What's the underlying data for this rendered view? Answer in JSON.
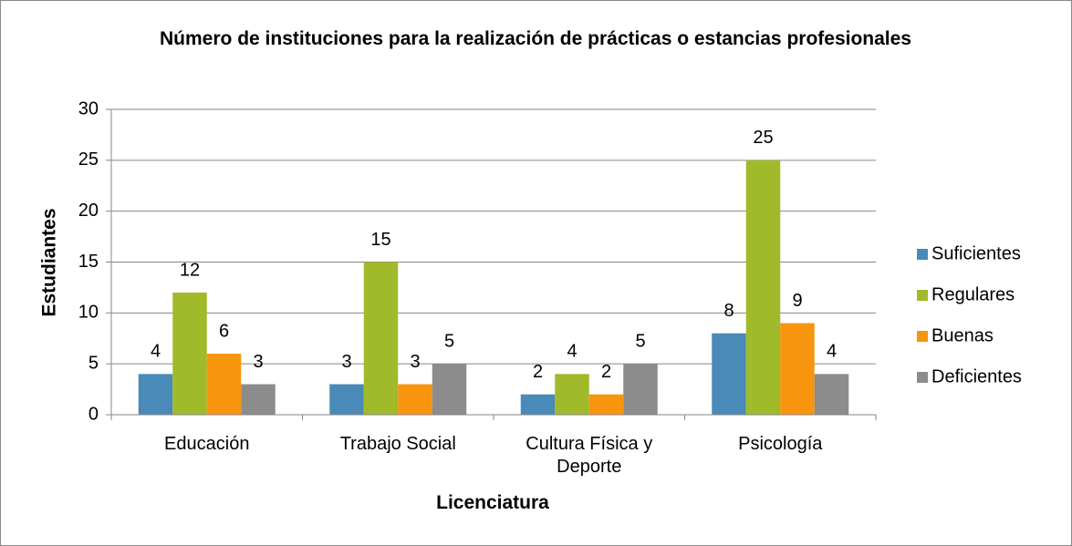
{
  "chart_data": {
    "type": "bar",
    "title": "Número de instituciones para la realización de prácticas o estancias profesionales",
    "x_label": "Licenciatura",
    "y_label": "Estudiantes",
    "categories": [
      "Educación",
      "Trabajo Social",
      "Cultura Física y Deporte",
      "Psicología"
    ],
    "series": [
      {
        "name": "Suficientes",
        "color": "#4a8ab8",
        "values": [
          4,
          3,
          2,
          8
        ]
      },
      {
        "name": "Regulares",
        "color": "#a0ba2a",
        "values": [
          12,
          15,
          4,
          25
        ]
      },
      {
        "name": "Buenas",
        "color": "#f7950e",
        "values": [
          6,
          3,
          2,
          9
        ]
      },
      {
        "name": "Deficientes",
        "color": "#8c8c8c",
        "values": [
          3,
          5,
          5,
          4
        ]
      }
    ],
    "ylim": [
      0,
      30
    ],
    "yticks": [
      0,
      5,
      10,
      15,
      20,
      25,
      30
    ],
    "grid": true,
    "legend": "right"
  }
}
